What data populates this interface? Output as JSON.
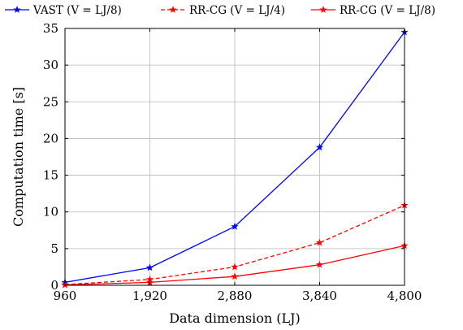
{
  "chart_data": {
    "type": "line",
    "title": "",
    "xlabel": "Data dimension (LJ)",
    "ylabel": "Computation time [s]",
    "x": [
      960,
      1920,
      2880,
      3840,
      4800
    ],
    "x_tick_labels": [
      "960",
      "1,920",
      "2,880",
      "3,840",
      "4,800"
    ],
    "y_ticks": [
      0,
      5,
      10,
      15,
      20,
      25,
      30,
      35
    ],
    "xlim": [
      960,
      4800
    ],
    "ylim": [
      0,
      35
    ],
    "grid": true,
    "legend_position": "top",
    "series": [
      {
        "name": "VAST (V = LJ/8)",
        "color": "#0000ff",
        "dashed": false,
        "marker": "star",
        "values": [
          0.4,
          2.4,
          8.0,
          18.8,
          34.5
        ]
      },
      {
        "name": "RR-CG (V = LJ/4)",
        "color": "#ff0000",
        "dashed": true,
        "marker": "star",
        "values": [
          0.1,
          0.8,
          2.5,
          5.8,
          10.9
        ]
      },
      {
        "name": "RR-CG (V = LJ/8)",
        "color": "#ff0000",
        "dashed": false,
        "marker": "star",
        "values": [
          0.05,
          0.4,
          1.2,
          2.8,
          5.4
        ]
      }
    ]
  }
}
